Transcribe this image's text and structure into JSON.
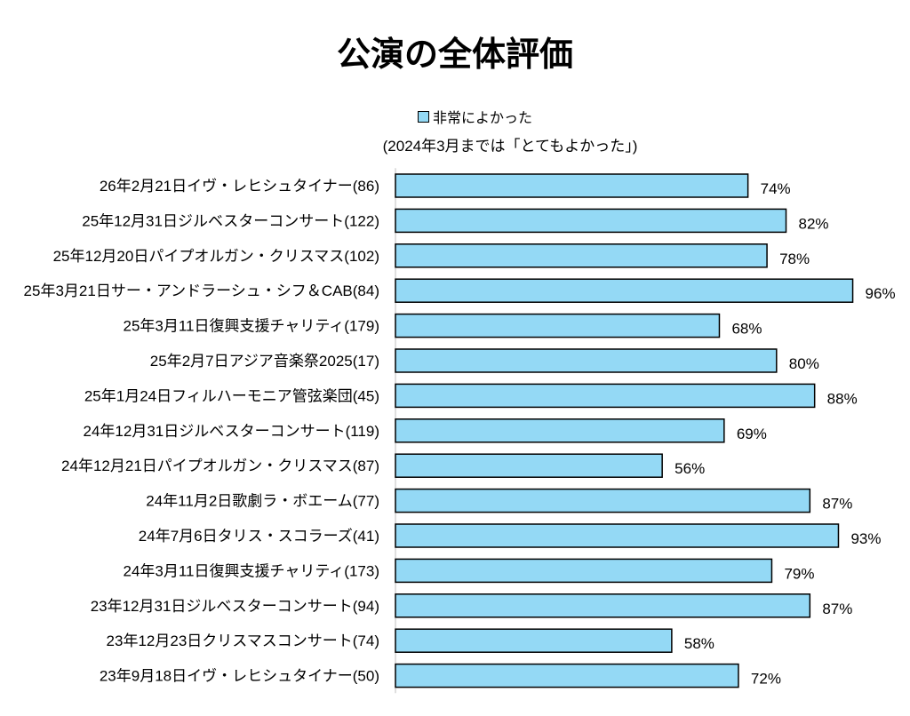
{
  "chart_data": {
    "type": "bar",
    "orientation": "horizontal",
    "title": "公演の全体評価",
    "legend": [
      {
        "label": "非常によかった",
        "color": "#94d9f5"
      }
    ],
    "legend_placement": "top",
    "note": "(2024年3月までは「とてもよかった」)",
    "categories": [
      "26年2月21日イヴ・レヒシュタイナー(86)",
      "25年12月31日ジルベスターコンサート(122)",
      "25年12月20日パイプオルガン・クリスマス(102)",
      "25年3月21日サー・アンドラーシュ・シフ＆CAB(84)",
      "25年3月11日復興支援チャリティ(179)",
      "25年2月7日アジア音楽祭2025(17)",
      "25年1月24日フィルハーモニア管弦楽団(45)",
      "24年12月31日ジルベスターコンサート(119)",
      "24年12月21日パイプオルガン・クリスマス(87)",
      "24年11月2日歌劇ラ・ボエーム(77)",
      "24年7月6日タリス・スコラーズ(41)",
      "24年3月11日復興支援チャリティ(173)",
      "23年12月31日ジルベスターコンサート(94)",
      "23年12月23日クリスマスコンサート(74)",
      "23年9月18日イヴ・レヒシュタイナー(50)"
    ],
    "series": [
      {
        "name": "非常によかった",
        "values": [
          74,
          82,
          78,
          96,
          68,
          80,
          88,
          69,
          56,
          87,
          93,
          79,
          87,
          58,
          72
        ]
      }
    ],
    "value_labels": [
      "74%",
      "82%",
      "78%",
      "96%",
      "68%",
      "80%",
      "88%",
      "69%",
      "56%",
      "87%",
      "93%",
      "79%",
      "87%",
      "58%",
      "72%"
    ],
    "xlim": [
      0,
      100
    ],
    "grid": false,
    "xlabel": "",
    "ylabel": ""
  },
  "colors": {
    "bar": "#94d9f5",
    "border": "#000000"
  }
}
